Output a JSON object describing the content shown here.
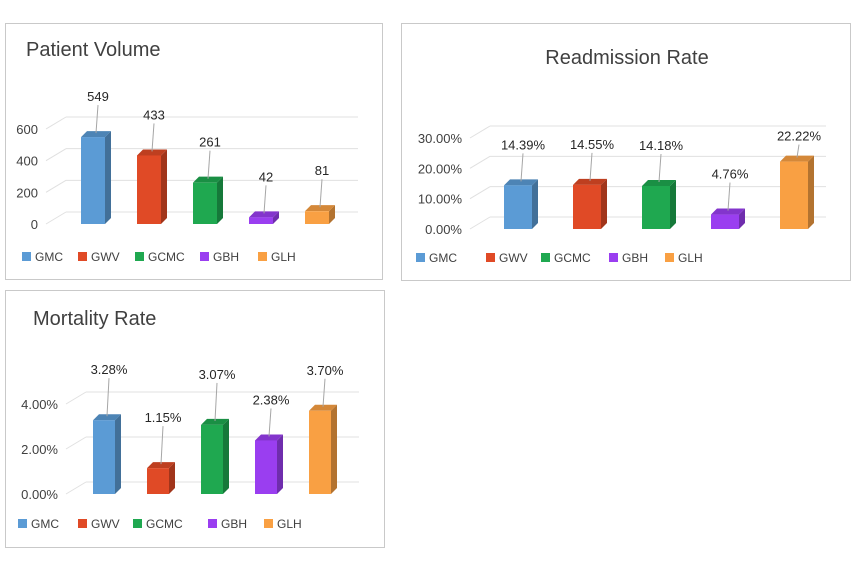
{
  "chart_data": [
    {
      "type": "bar",
      "title": "Patient Volume",
      "categories": [
        "GMC",
        "GWV",
        "GCMC",
        "GBH",
        "GLH"
      ],
      "values": [
        549,
        433,
        261,
        42,
        81
      ],
      "data_labels": [
        "549",
        "433",
        "261",
        "42",
        "81"
      ],
      "ylim": [
        0,
        600
      ],
      "yticks": [
        "0",
        "200",
        "400",
        "600"
      ],
      "colors": [
        "#5b9bd5",
        "#e04a26",
        "#1fa850",
        "#9a3ef0",
        "#f9a043"
      ],
      "grid": true,
      "legend": "bottom-left"
    },
    {
      "type": "bar",
      "title": "Readmission Rate",
      "categories": [
        "GMC",
        "GWV",
        "GCMC",
        "GBH",
        "GLH"
      ],
      "values": [
        14.39,
        14.55,
        14.18,
        4.76,
        22.22
      ],
      "data_labels": [
        "14.39%",
        "14.55%",
        "14.18%",
        "4.76%",
        "22.22%"
      ],
      "ylim": [
        0,
        30
      ],
      "yticks": [
        "0.00%",
        "10.00%",
        "20.00%",
        "30.00%"
      ],
      "colors": [
        "#5b9bd5",
        "#e04a26",
        "#1fa850",
        "#9a3ef0",
        "#f9a043"
      ],
      "grid": true,
      "legend": "bottom-left"
    },
    {
      "type": "bar",
      "title": "Mortality Rate",
      "categories": [
        "GMC",
        "GWV",
        "GCMC",
        "GBH",
        "GLH"
      ],
      "values": [
        3.28,
        1.15,
        3.07,
        2.38,
        3.7
      ],
      "data_labels": [
        "3.28%",
        "1.15%",
        "3.07%",
        "2.38%",
        "3.70%"
      ],
      "ylim": [
        0,
        4
      ],
      "yticks": [
        "0.00%",
        "2.00%",
        "4.00%"
      ],
      "colors": [
        "#5b9bd5",
        "#e04a26",
        "#1fa850",
        "#9a3ef0",
        "#f9a043"
      ],
      "grid": true,
      "legend": "bottom-left"
    }
  ]
}
